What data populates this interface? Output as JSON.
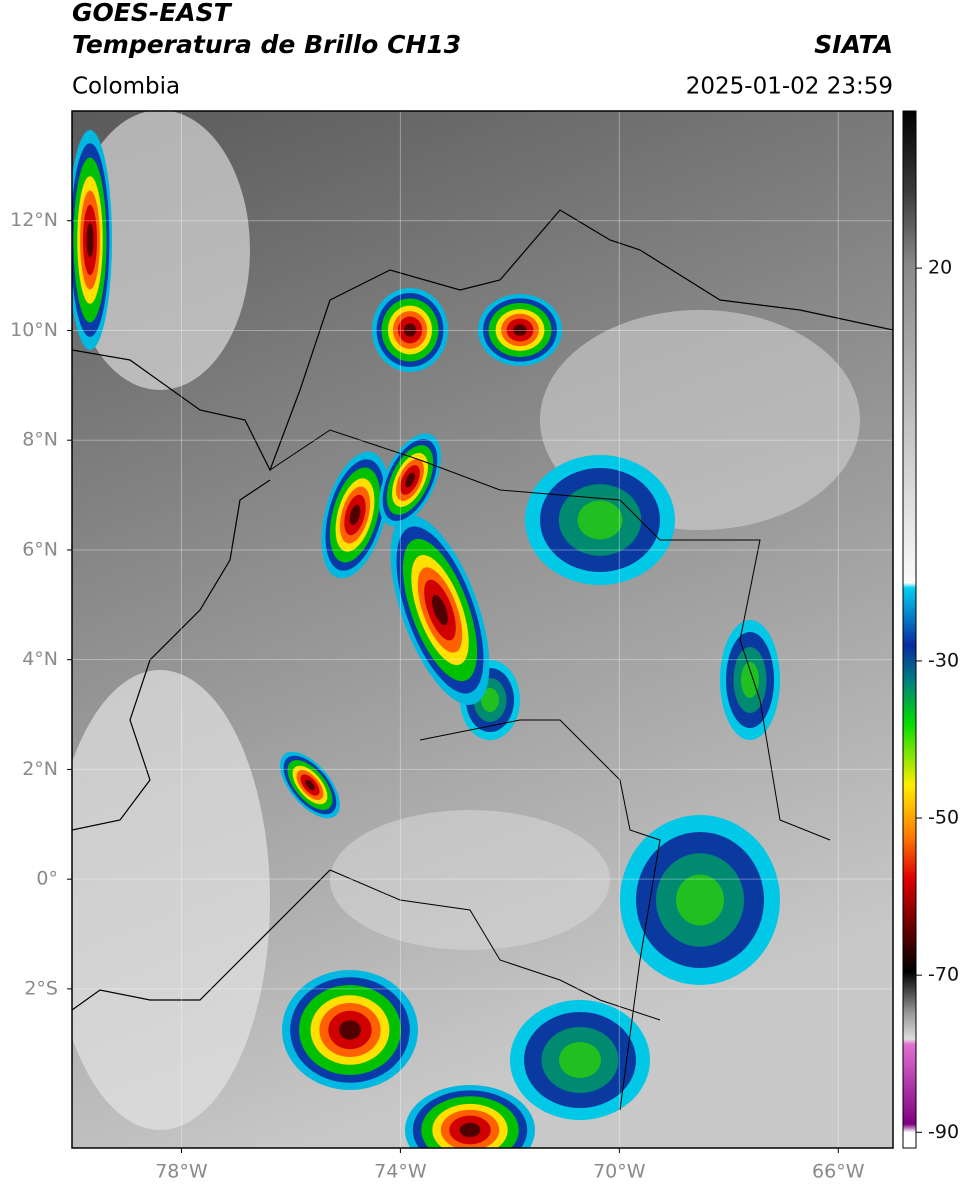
{
  "header": {
    "satellite": "GOES-EAST",
    "product": "Temperatura de Brillo CH13",
    "source": "SIATA",
    "region": "Colombia",
    "datetime": "2025-01-02 23:59"
  },
  "map": {
    "xlim": [
      -80,
      -65
    ],
    "ylim": [
      -4.9,
      14
    ],
    "grid": true,
    "xticks": [
      {
        "value": -78,
        "label": "78°W"
      },
      {
        "value": -74,
        "label": "74°W"
      },
      {
        "value": -70,
        "label": "70°W"
      },
      {
        "value": -66,
        "label": "66°W"
      }
    ],
    "yticks": [
      {
        "value": 12,
        "label": "12°N"
      },
      {
        "value": 10,
        "label": "10°N"
      },
      {
        "value": 8,
        "label": "8°N"
      },
      {
        "value": 6,
        "label": "6°N"
      },
      {
        "value": 4,
        "label": "4°N"
      },
      {
        "value": 2,
        "label": "2°N"
      },
      {
        "value": 0,
        "label": "0°"
      },
      {
        "value": -2,
        "label": "2°S"
      }
    ]
  },
  "colorbar": {
    "lim": [
      -92,
      40
    ],
    "ticks": [
      20,
      -30,
      -50,
      -70,
      -90
    ]
  }
}
